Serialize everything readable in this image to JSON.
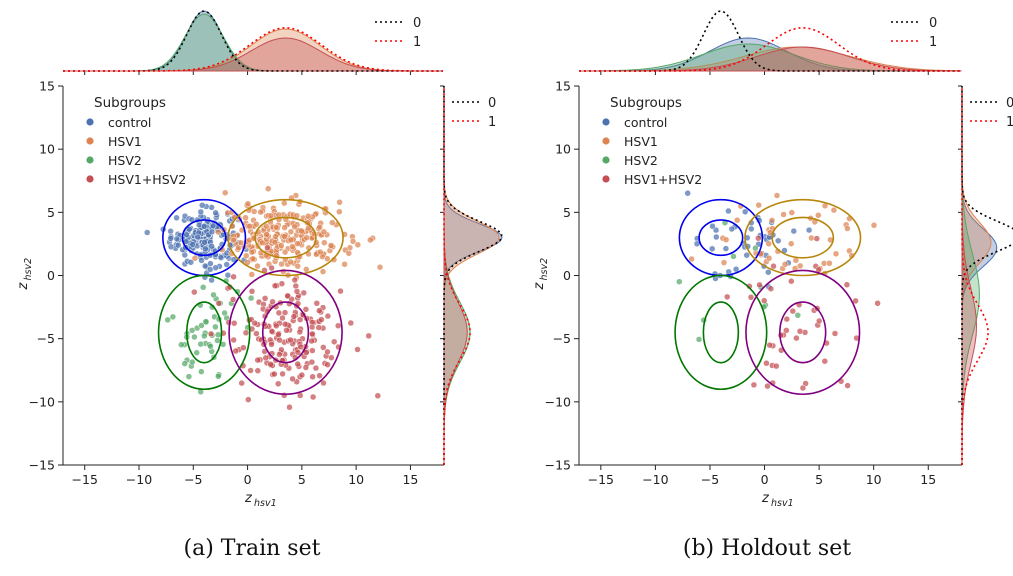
{
  "chart_data": [
    {
      "type": "scatter",
      "caption": "(a) Train set",
      "xlabel_main": "z",
      "xlabel_sub": "hsv1",
      "ylabel_main": "z",
      "ylabel_sub": "hsv2",
      "xlim": [
        -17,
        18
      ],
      "ylim": [
        -15,
        15
      ],
      "xticks": [
        -15,
        -10,
        -5,
        0,
        5,
        10,
        15
      ],
      "yticks": [
        -15,
        -10,
        -5,
        0,
        5,
        10,
        15
      ],
      "legend_title": "Subgroups",
      "legend_placement": "top-left",
      "groups": [
        {
          "name": "control",
          "color": "#4c72b0",
          "center": [
            -4,
            3
          ],
          "spread": [
            1.5,
            1.1
          ],
          "n": 190
        },
        {
          "name": "HSV1",
          "color": "#dd8452",
          "center": [
            3.5,
            3
          ],
          "spread": [
            2.9,
            1.3
          ],
          "n": 260
        },
        {
          "name": "HSV2",
          "color": "#55a868",
          "center": [
            -4,
            -4.5
          ],
          "spread": [
            1.6,
            2.4
          ],
          "n": 50
        },
        {
          "name": "HSV1+HSV2",
          "color": "#c44e52",
          "center": [
            3.5,
            -4.5
          ],
          "spread": [
            2.9,
            2.4
          ],
          "n": 190
        }
      ],
      "ellipses": [
        {
          "color": "#0000ee",
          "center": [
            -4,
            3
          ],
          "radii": [
            [
              2,
              1.4
            ],
            [
              3.8,
              3
            ]
          ]
        },
        {
          "color": "#b8860b",
          "center": [
            3.5,
            3
          ],
          "radii": [
            [
              2.8,
              1.6
            ],
            [
              5.3,
              3
            ]
          ]
        },
        {
          "color": "#007700",
          "center": [
            -4,
            -4.5
          ],
          "radii": [
            [
              1.6,
              2.4
            ],
            [
              4.2,
              4.5
            ]
          ]
        },
        {
          "color": "#800080",
          "center": [
            3.5,
            -4.5
          ],
          "radii": [
            [
              2.1,
              2.4
            ],
            [
              5.2,
              4.9
            ]
          ]
        }
      ],
      "density_legend": [
        {
          "label": "0",
          "color": "#000000"
        },
        {
          "label": "1",
          "color": "#ff0000"
        }
      ]
    },
    {
      "type": "scatter",
      "caption": "(b) Holdout set",
      "xlabel_main": "z",
      "xlabel_sub": "hsv1",
      "ylabel_main": "z",
      "ylabel_sub": "hsv2",
      "xlim": [
        -17,
        18
      ],
      "ylim": [
        -15,
        15
      ],
      "xticks": [
        -15,
        -10,
        -5,
        0,
        5,
        10,
        15
      ],
      "yticks": [
        -15,
        -10,
        -5,
        0,
        5,
        10,
        15
      ],
      "legend_title": "Subgroups",
      "legend_placement": "top-left",
      "groups": [
        {
          "name": "control",
          "color": "#4c72b0",
          "center": [
            -1.5,
            2.2
          ],
          "spread": [
            2.5,
            1.5
          ],
          "n": 45
        },
        {
          "name": "HSV1",
          "color": "#dd8452",
          "center": [
            3,
            2.6
          ],
          "spread": [
            3.5,
            1.6
          ],
          "n": 45
        },
        {
          "name": "HSV2",
          "color": "#55a868",
          "center": [
            -1.5,
            -1.5
          ],
          "spread": [
            3,
            3.2
          ],
          "n": 10
        },
        {
          "name": "HSV1+HSV2",
          "color": "#c44e52",
          "center": [
            3.5,
            -4
          ],
          "spread": [
            3,
            3
          ],
          "n": 45
        }
      ],
      "ellipses": [
        {
          "color": "#0000ee",
          "center": [
            -4,
            3
          ],
          "radii": [
            [
              2,
              1.4
            ],
            [
              3.8,
              3
            ]
          ]
        },
        {
          "color": "#b8860b",
          "center": [
            3.5,
            3
          ],
          "radii": [
            [
              2.8,
              1.6
            ],
            [
              5.3,
              3
            ]
          ]
        },
        {
          "color": "#007700",
          "center": [
            -4,
            -4.5
          ],
          "radii": [
            [
              1.6,
              2.4
            ],
            [
              4.2,
              4.5
            ]
          ]
        },
        {
          "color": "#800080",
          "center": [
            3.5,
            -4.5
          ],
          "radii": [
            [
              2.1,
              2.4
            ],
            [
              5.2,
              4.9
            ]
          ]
        }
      ],
      "density_legend": [
        {
          "label": "0",
          "color": "#000000"
        },
        {
          "label": "1",
          "color": "#ff0000"
        }
      ]
    }
  ]
}
